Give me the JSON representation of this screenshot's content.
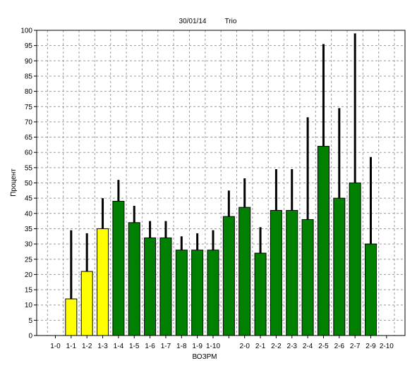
{
  "header": {
    "date": "30/01/14",
    "name": "Trio"
  },
  "colors": {
    "yellow": "#ffff00",
    "green": "#008000",
    "error_bar": "#000000",
    "grid": "#9a9a9a"
  },
  "chart_data": {
    "type": "bar",
    "xlabel": "ВОЗРМ",
    "ylabel": "Процент",
    "ylim": [
      0,
      100
    ],
    "y_ticks": [
      0,
      5,
      10,
      15,
      20,
      25,
      30,
      35,
      40,
      45,
      50,
      55,
      60,
      65,
      70,
      75,
      80,
      85,
      90,
      95,
      100
    ],
    "grid": true,
    "categories": [
      "1-0",
      "1-1",
      "1-2",
      "1-3",
      "1-4",
      "1-5",
      "1-6",
      "1-7",
      "1-8",
      "1-9",
      "1-10",
      "",
      "2-0",
      "2-1",
      "2-2",
      "2-3",
      "2-4",
      "2-5",
      "2-6",
      "2-7",
      "2-9",
      "2-10"
    ],
    "values": [
      null,
      12,
      21,
      35,
      44,
      37,
      32,
      32,
      28,
      28,
      28,
      39,
      42,
      27,
      41,
      41,
      38,
      62,
      45,
      50,
      30,
      null
    ],
    "error_upper": [
      null,
      34.5,
      33.5,
      45,
      51,
      42.5,
      37.5,
      37.5,
      32.5,
      33.5,
      34.5,
      47.5,
      51.5,
      35.5,
      54.5,
      54.5,
      71.5,
      95.5,
      74.5,
      99,
      58.5,
      null
    ],
    "bar_colors": [
      "",
      "yellow",
      "yellow",
      "yellow",
      "green",
      "green",
      "green",
      "green",
      "green",
      "green",
      "green",
      "green",
      "green",
      "green",
      "green",
      "green",
      "green",
      "green",
      "green",
      "green",
      "green",
      ""
    ]
  }
}
